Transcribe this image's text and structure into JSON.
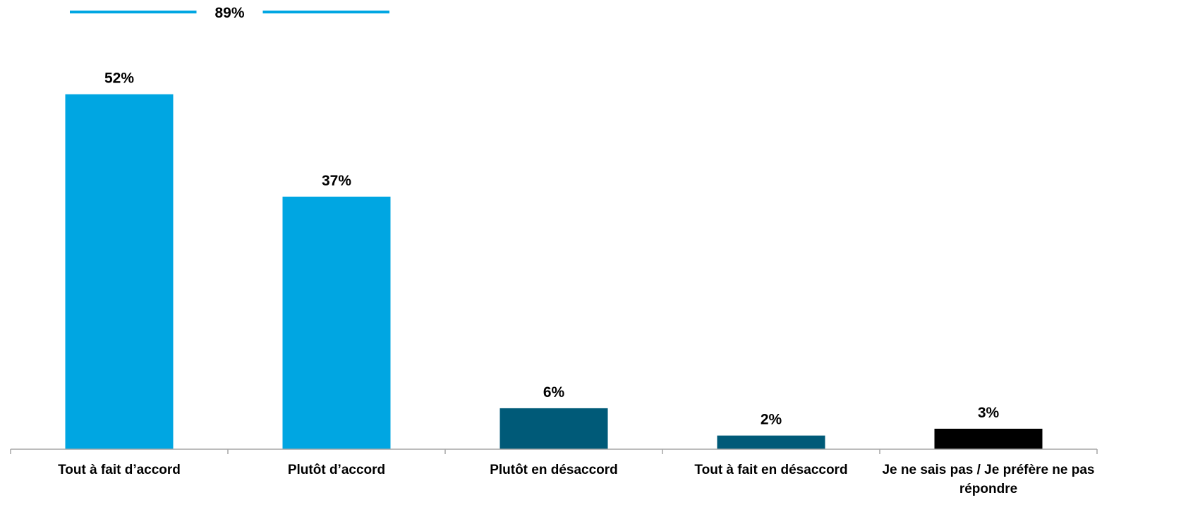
{
  "chart_data": {
    "type": "bar",
    "categories": [
      [
        "Tout à fait d’accord"
      ],
      [
        "Plutôt d’accord"
      ],
      [
        "Plutôt en désaccord"
      ],
      [
        "Tout à fait en désaccord"
      ],
      [
        "Je ne sais pas / Je préfère ne pas",
        "répondre"
      ]
    ],
    "values": [
      52,
      37,
      6,
      2,
      3
    ],
    "value_labels": [
      "52%",
      "37%",
      "6%",
      "2%",
      "3%"
    ],
    "bar_colors": [
      "#00A6E2",
      "#00A6E2",
      "#005A78",
      "#005A78",
      "#000000"
    ],
    "ylim": [
      0,
      60
    ],
    "grid": false,
    "legend": "none",
    "aggregate": {
      "label": "89%",
      "categories": [
        0,
        1
      ],
      "color": "#00A6E2"
    }
  }
}
